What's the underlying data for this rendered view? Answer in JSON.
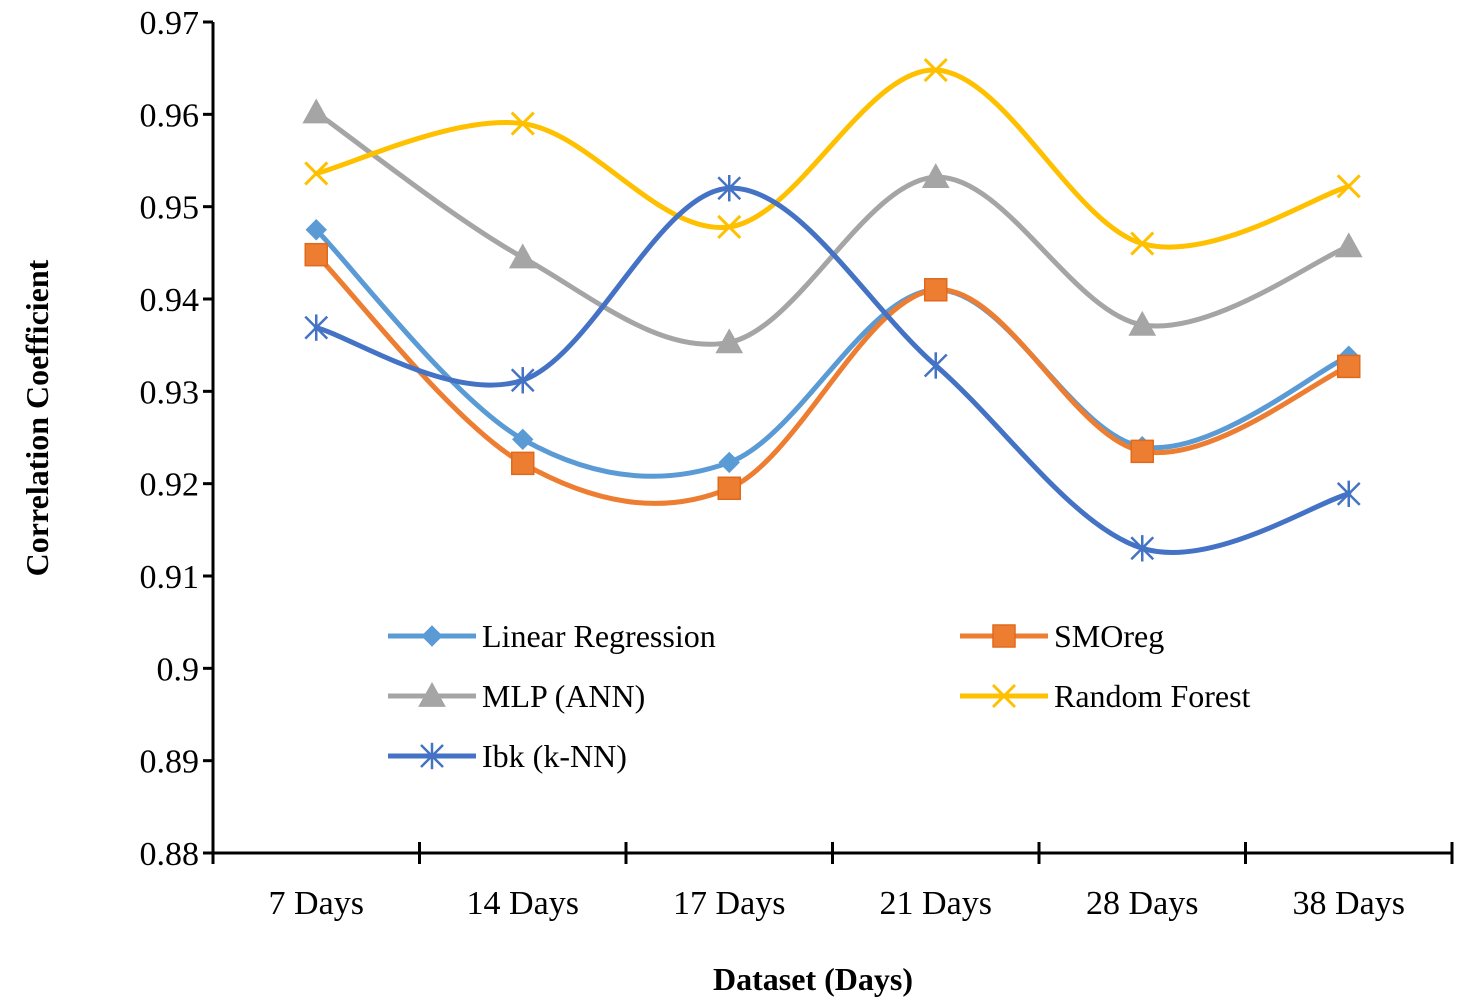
{
  "chart_data": {
    "type": "line",
    "title": "",
    "xlabel": "Dataset (Days)",
    "ylabel": "Correlation Coefficient",
    "categories": [
      "7 Days",
      "14 Days",
      "17 Days",
      "21 Days",
      "28 Days",
      "38 Days"
    ],
    "ylim": [
      0.88,
      0.97
    ],
    "yticks": [
      0.88,
      0.89,
      0.9,
      0.91,
      0.92,
      0.93,
      0.94,
      0.95,
      0.96,
      0.97
    ],
    "ytick_labels": [
      "0.88",
      "0.89",
      "0.9",
      "0.91",
      "0.92",
      "0.93",
      "0.94",
      "0.95",
      "0.96",
      "0.97"
    ],
    "grid": false,
    "legend_position": "center",
    "smooth": true,
    "series": [
      {
        "name": "Linear Regression",
        "marker": "diamond",
        "color": "#5b9bd5",
        "values": [
          0.9475,
          0.9248,
          0.9223,
          0.941,
          0.924,
          0.9338
        ]
      },
      {
        "name": "SMOreg",
        "marker": "square",
        "color": "#ed7d31",
        "values": [
          0.9448,
          0.9222,
          0.9195,
          0.941,
          0.9235,
          0.9327
        ]
      },
      {
        "name": "MLP (ANN)",
        "marker": "triangle",
        "color": "#a5a5a5",
        "values": [
          0.9602,
          0.9445,
          0.9353,
          0.9532,
          0.9372,
          0.9457
        ]
      },
      {
        "name": "Random Forest",
        "marker": "x",
        "color": "#ffc000",
        "values": [
          0.9536,
          0.959,
          0.9478,
          0.9648,
          0.946,
          0.9522
        ]
      },
      {
        "name": "Ibk (k-NN)",
        "marker": "star",
        "color": "#4472c4",
        "values": [
          0.9369,
          0.9312,
          0.952,
          0.9328,
          0.913,
          0.9189
        ]
      }
    ]
  }
}
